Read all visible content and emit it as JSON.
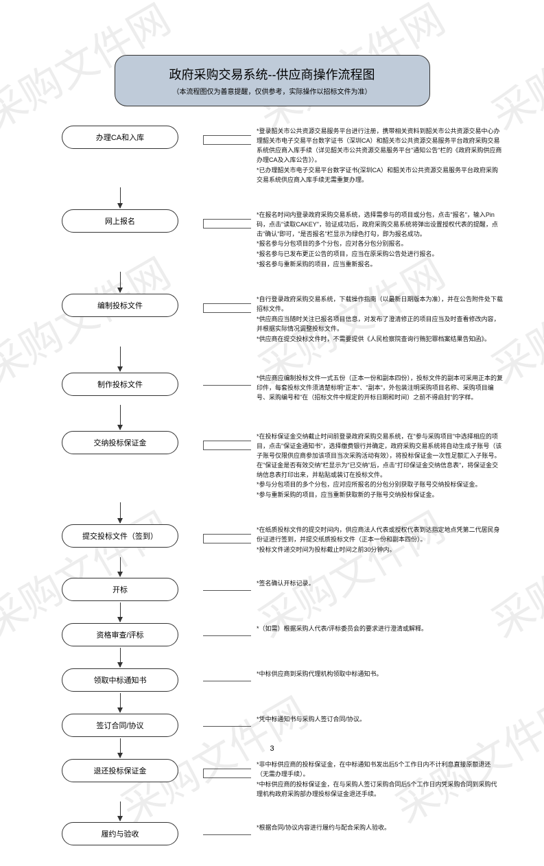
{
  "header": {
    "bg_color": "#bfcbd9",
    "title": "政府采购交易系统--供应商操作流程图",
    "subtitle": "（本流程图仅为善意提醒，仅供参考，实际操作以招标文件为准）"
  },
  "watermark_text": "采购文件网",
  "watermark_color": "#ededed",
  "page_number": "3",
  "arrow_heights": [
    38,
    30,
    30,
    36,
    36,
    30,
    28,
    28,
    28,
    28,
    28
  ],
  "steps": [
    {
      "label": "办理CA和入库",
      "notes": [
        "*登录韶关市公共资源交易服务平台进行注册，携带相关资料到韶关市公共资源交易中心办理韶关市电子交易平台数字证书（深圳CA）和韶关市公共资源交易服务平台政府采购交易系统供应商入库手续（详见韶关市公共资源交易服务平台\"通知公告\"栏的《政府采购供应商办理CA及入库公告》）。",
        "*已办理韶关市电子交易平台数字证书(深圳CA）和韶关市公共资源交易服务平台政府采购交易系统供应商入库手续无需重复办理。"
      ]
    },
    {
      "label": "网上报名",
      "notes": [
        "*在报名时间内登录政府采购交易系统，选择需参与的项目或分包，点击\"报名\"，输入Pin码，点击\"读取CAKEY\"，验证成功后，政府采购交易系统将弹出设置授权代表的提醒，点击\"确认\"即可，\"是否报名\"栏显示为绿色打勾，即为报名成功。",
        "*报名参与分包项目的多个分包，应对各分包分别报名。",
        "*报名参与已发布更正公告的项目，应当在原采购公告处进行报名。",
        "*报名参与重新采购的项目，应当重新报名。"
      ]
    },
    {
      "label": "编制投标文件",
      "notes": [
        "*自行登录政府采购交易系统，下载操作指南（以最新日期版本为准），并在公告附件处下载招标文件。",
        "*供应商应当随时关注已报名项目信息，对发布了澄清修正的项目应当及时查看修改内容，并根据实际情况调整投标文件。",
        "*供应商在提交投标文件时，不需要提供《人民检察院查询行贿犯罪档案结果告知函》。"
      ]
    },
    {
      "label": "制作投标文件",
      "notes": [
        "*供应商应编制投标文件一式五份（正本一份和副本四份），投标文件的副本可采用正本的复印件，每套投标文件须清楚标明\"正本\"、\"副本\"，外包装注明采购项目名称、采购项目编号、采购编号和\"在（招标文件中规定的开标日期和时间）之前不得启封\"的字样。"
      ]
    },
    {
      "label": "交纳投标保证金",
      "notes": [
        "*在投标保证金交纳截止时间前登录政府采购交易系统，在\"参与采购项目\"中选择相应的项目，点击\"保证金通知书\"，选择缴费银行并确定，政府采购交易系统将自动生成子账号（该子账号仅限供应商参加该项目当次采购活动有效），将投标保证金一次性足额汇入子账号。在\"保证金是否有效交纳\"栏显示为\"已交纳\"后，点击\"打印保证金交纳信息表\"，将保证金交纳信息表打印出来，并粘贴或装订在投标文件。",
        "*参与分包项目的多个分包，应对应所报名的分包分别获取子账号交纳投标保证金。",
        "*参与重新采购的项目，应当重新获取新的子账号交纳投标保证金。"
      ]
    },
    {
      "label": "提交投标文件（签到）",
      "notes": [
        "*在纸质投标文件的提交时间内，供应商法人代表或授权代表到达指定地点凭第二代居民身份证进行签到，并提交纸质投标文件（正本一份和副本四份）。",
        "*投标文件递交时间为投标截止时间之前30分钟内。"
      ]
    },
    {
      "label": "开标",
      "notes": [
        "*签名确认开标记录。"
      ]
    },
    {
      "label": "资格审查/评标",
      "notes": [
        "*（如需）根据采购人代表/评标委员会的要求进行澄清或解释。"
      ]
    },
    {
      "label": "领取中标通知书",
      "notes": [
        "*中标供应商到采购代理机构领取中标通知书。"
      ]
    },
    {
      "label": "签订合同/协议",
      "notes": [
        "*凭中标通知书与采购人签订合同/协议。"
      ]
    },
    {
      "label": "退还投标保证金",
      "notes": [
        "*非中标供应商的投标保证金，在中标通知书发出后5个工作日内不计利息直接原额退还（无需办理手续）。",
        "*中标供应商的投标保证金，在与采购人签订采购合同后5个工作日内凭采购合同到采购代理机构政府采购部办理投标保证金退还手续。"
      ]
    },
    {
      "label": "履约与验收",
      "notes": [
        "*根据合同/协议内容进行履约与配合采购人验收。"
      ]
    }
  ]
}
